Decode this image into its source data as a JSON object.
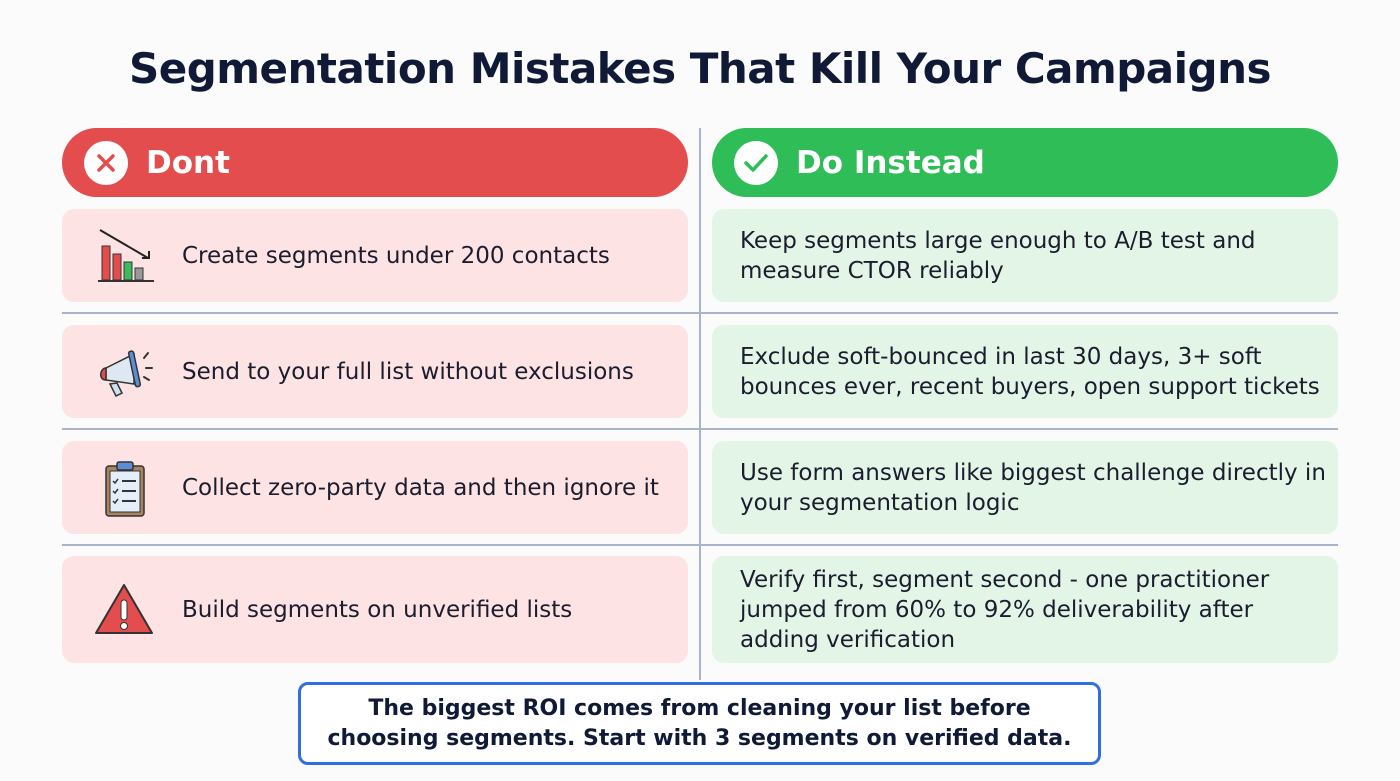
{
  "title": "Segmentation Mistakes That Kill Your Campaigns",
  "colors": {
    "dont": "#e44d4d",
    "do": "#2ebd57",
    "dont_row": "#fde3e3",
    "do_row": "#e2f5e6",
    "note_border": "#2f6fe0"
  },
  "dont_header": {
    "label": "Dont",
    "icon": "x-circle-icon"
  },
  "do_header": {
    "label": "Do Instead",
    "icon": "check-circle-icon"
  },
  "rows": [
    {
      "dont": "Create segments under 200 contacts",
      "dont_icon": "declining-bar-chart-icon",
      "do": "Keep segments large enough to A/B test and measure CTOR reliably"
    },
    {
      "dont": "Send to your full list without exclusions",
      "dont_icon": "megaphone-icon",
      "do": "Exclude soft-bounced in last 30 days, 3+ soft bounces ever, recent buyers, open support tickets"
    },
    {
      "dont": "Collect zero-party data and then ignore it",
      "dont_icon": "clipboard-checklist-icon",
      "do": "Use form answers like biggest challenge directly in your segmentation logic"
    },
    {
      "dont": "Build segments on unverified lists",
      "dont_icon": "warning-triangle-icon",
      "do": "Verify first, segment second - one practitioner jumped from 60% to 92% deliverability after adding verification"
    }
  ],
  "note": "The biggest ROI comes from cleaning your list before choosing segments. Start with 3 segments on verified data."
}
